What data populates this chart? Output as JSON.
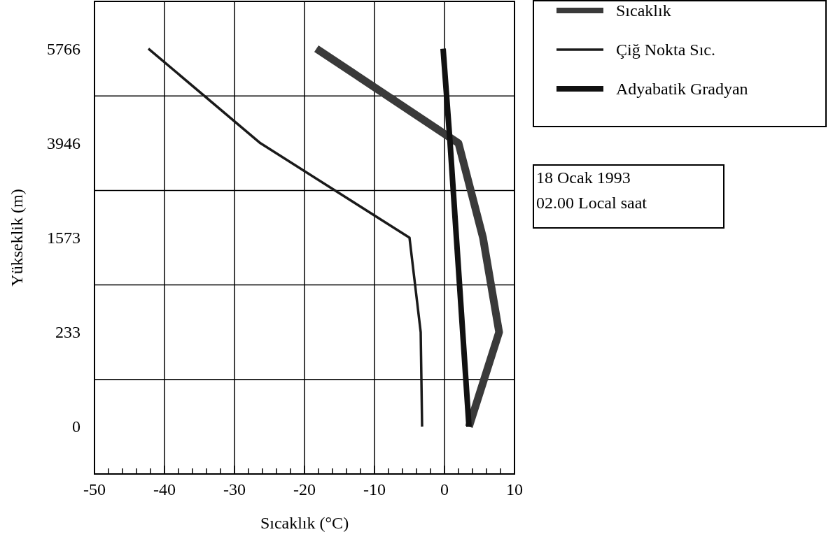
{
  "chart_data": {
    "type": "line",
    "orientation": "horizontal",
    "xlabel": "Sıcaklık (°C)",
    "ylabel": "Yükseklik (m)",
    "categories": [
      "5766",
      "3946",
      "1573",
      "233",
      "0"
    ],
    "xlim": [
      -50,
      10
    ],
    "xticks": [
      -50,
      {
        "value": -48,
        "label": null
      },
      {
        "value": -46,
        "label": null
      },
      {
        "value": -44,
        "label": null
      },
      {
        "value": -42,
        "label": null
      },
      -40,
      {
        "value": -38,
        "label": null
      },
      {
        "value": -36,
        "label": null
      },
      {
        "value": -34,
        "label": null
      },
      {
        "value": -32,
        "label": null
      },
      -30,
      {
        "value": -28,
        "label": null
      },
      {
        "value": -26,
        "label": null
      },
      {
        "value": -24,
        "label": null
      },
      {
        "value": -22,
        "label": null
      },
      -20,
      {
        "value": -18,
        "label": null
      },
      {
        "value": -16,
        "label": null
      },
      {
        "value": -14,
        "label": null
      },
      {
        "value": -12,
        "label": null
      },
      -10,
      {
        "value": -8,
        "label": null
      },
      {
        "value": -6,
        "label": null
      },
      {
        "value": -4,
        "label": null
      },
      {
        "value": -2,
        "label": null
      },
      0,
      {
        "value": 2,
        "label": null
      },
      {
        "value": 4,
        "label": null
      },
      {
        "value": 6,
        "label": null
      },
      {
        "value": 8,
        "label": null
      },
      10
    ],
    "grid": true,
    "legend": "top right",
    "marker": "none",
    "line_style": "solid",
    "series": [
      {
        "name": "Sıcaklık",
        "color": "#3a3a3a",
        "values": [
          -18.3,
          2.0,
          5.5,
          7.8,
          3.5
        ]
      },
      {
        "name": "Çiğ Nokta Sıc.",
        "color": "#1a1a1a",
        "values": [
          -42.3,
          -26.3,
          -5,
          -3.4,
          -3.2
        ]
      },
      {
        "name": "Adyabatik Gradyan",
        "color": "#111111",
        "values": [
          -0.2,
          0.8,
          1.7,
          2.6,
          3.5
        ]
      }
    ],
    "annotations": [
      "18 Ocak 1993",
      "02.00 Local saat"
    ]
  }
}
